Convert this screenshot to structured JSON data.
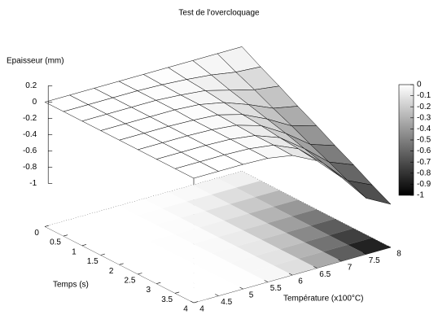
{
  "chart_data": {
    "type": "surface",
    "title": "Test de l'overcloquage",
    "xlabel": "Température (x100°C)",
    "ylabel": "Temps (s)",
    "zlabel": "Epaisseur (mm)",
    "x": [
      4,
      4.5,
      5,
      5.5,
      6,
      6.5,
      7,
      7.5,
      8
    ],
    "y": [
      0,
      0.5,
      1,
      1.5,
      2,
      2.5,
      3,
      3.5,
      4
    ],
    "z": [
      [
        0,
        0,
        0,
        0,
        0,
        0,
        0,
        0,
        0
      ],
      [
        0,
        0,
        0,
        0,
        -0.01,
        -0.03,
        -0.06,
        -0.11,
        -0.13
      ],
      [
        0,
        0,
        0,
        0,
        -0.02,
        -0.05,
        -0.13,
        -0.21,
        -0.25
      ],
      [
        0,
        0,
        0,
        0,
        -0.02,
        -0.08,
        -0.19,
        -0.32,
        -0.38
      ],
      [
        0,
        0,
        0,
        -0.01,
        -0.03,
        -0.11,
        -0.25,
        -0.42,
        -0.5
      ],
      [
        0,
        0,
        0,
        -0.01,
        -0.04,
        -0.13,
        -0.31,
        -0.53,
        -0.63
      ],
      [
        0,
        0,
        0,
        -0.01,
        -0.05,
        -0.16,
        -0.38,
        -0.63,
        -0.75
      ],
      [
        0,
        0,
        0,
        -0.01,
        -0.05,
        -0.18,
        -0.44,
        -0.74,
        -0.88
      ],
      [
        0,
        0,
        0,
        -0.01,
        -0.06,
        -0.21,
        -0.5,
        -0.84,
        -1
      ]
    ],
    "xlim": [
      4,
      8
    ],
    "ylim": [
      0,
      4
    ],
    "zlim": [
      -1,
      0.2
    ],
    "xticks": [
      4,
      4.5,
      5,
      5.5,
      6,
      6.5,
      7,
      7.5,
      8
    ],
    "yticks": [
      0,
      0.5,
      1,
      1.5,
      2,
      2.5,
      3,
      3.5,
      4
    ],
    "zticks": [
      0.2,
      0,
      -0.2,
      -0.4,
      -0.6,
      -0.8,
      -1
    ],
    "cblim": [
      -1,
      0
    ],
    "cbticks": [
      0,
      -0.1,
      -0.2,
      -0.3,
      -0.4,
      -0.5,
      -0.6,
      -0.7,
      -0.8,
      -0.9,
      -1
    ],
    "palette": [
      "#000000",
      "#ffffff"
    ]
  }
}
